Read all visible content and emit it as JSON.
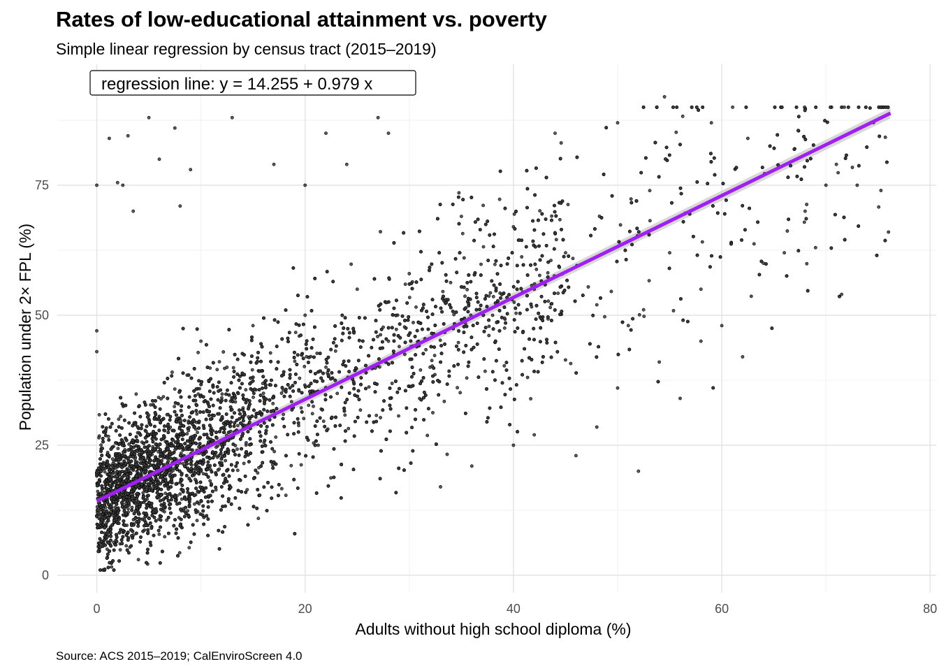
{
  "chart_data": {
    "type": "scatter",
    "title": "Rates of low-educational attainment vs. poverty",
    "subtitle": "Simple linear regression by census tract (2015–2019)",
    "xlabel": "Adults without high school diploma (%)",
    "ylabel": "Population under 2× FPL (%)",
    "caption": "Source: ACS 2015–2019; CalEnviroScreen 4.0",
    "annotation": "regression line: y = 14.255 + 0.979 x",
    "xlim": [
      -5,
      80
    ],
    "ylim": [
      -3,
      93
    ],
    "x_ticks": [
      0,
      20,
      40,
      60,
      80
    ],
    "y_ticks": [
      0,
      25,
      50,
      75
    ],
    "grid": true,
    "point_color": "#000000",
    "line_color": "#a020f0",
    "band_color": "#bebebe",
    "regression": {
      "intercept": 14.255,
      "slope": 0.979,
      "x_range": [
        0,
        76.2
      ]
    },
    "n_points_approx": 7900,
    "sample_points": [
      [
        0,
        75
      ],
      [
        0,
        47
      ],
      [
        0,
        43
      ],
      [
        1.2,
        84
      ],
      [
        2,
        75.5
      ],
      [
        2.5,
        75
      ],
      [
        3,
        84.5
      ],
      [
        3.5,
        70
      ],
      [
        5,
        88
      ],
      [
        6,
        80
      ],
      [
        7.5,
        86
      ],
      [
        8,
        71
      ],
      [
        9,
        78
      ],
      [
        13,
        88
      ],
      [
        17,
        79
      ],
      [
        20,
        75
      ],
      [
        22,
        85
      ],
      [
        24,
        79
      ],
      [
        27,
        88
      ],
      [
        28,
        85
      ],
      [
        44,
        85
      ],
      [
        50,
        87
      ],
      [
        54.5,
        92
      ],
      [
        59,
        87
      ],
      [
        62.5,
        84
      ],
      [
        67,
        82
      ],
      [
        71,
        79
      ],
      [
        73,
        75
      ],
      [
        76,
        66
      ],
      [
        70,
        75
      ],
      [
        71.5,
        54
      ],
      [
        62,
        42
      ],
      [
        58,
        45
      ],
      [
        54,
        41
      ],
      [
        50,
        36
      ],
      [
        48,
        28.5
      ],
      [
        42,
        27
      ],
      [
        40,
        25
      ],
      [
        36,
        21
      ],
      [
        33,
        17
      ],
      [
        46,
        23
      ],
      [
        52,
        20
      ],
      [
        56,
        34
      ],
      [
        60,
        48
      ],
      [
        64,
        60
      ],
      [
        66,
        62
      ],
      [
        68,
        70
      ],
      [
        69,
        63
      ],
      [
        58,
        55
      ],
      [
        55,
        62
      ],
      [
        45,
        62
      ],
      [
        40,
        67
      ],
      [
        35,
        69
      ],
      [
        30,
        58
      ],
      [
        25,
        55
      ],
      [
        20,
        50
      ],
      [
        15,
        48
      ],
      [
        10,
        45
      ],
      [
        5,
        30
      ],
      [
        3,
        20
      ],
      [
        2,
        10
      ],
      [
        1,
        5
      ],
      [
        4,
        3
      ],
      [
        6,
        15
      ],
      [
        8,
        25
      ],
      [
        12,
        30
      ],
      [
        16,
        35
      ],
      [
        22,
        40
      ],
      [
        28,
        45
      ],
      [
        32,
        40
      ],
      [
        38,
        50
      ],
      [
        42,
        55
      ],
      [
        48,
        52
      ]
    ]
  }
}
